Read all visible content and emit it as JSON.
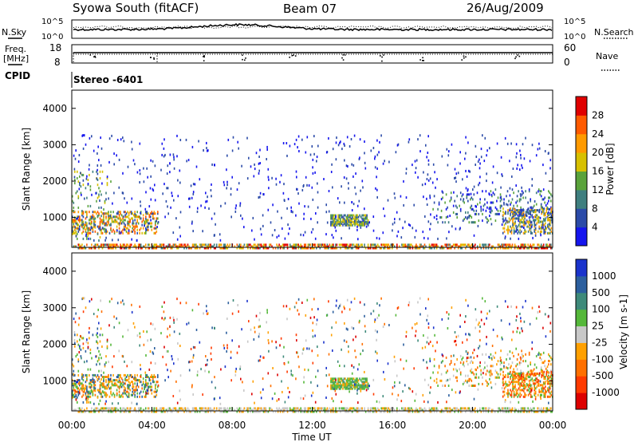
{
  "header": {
    "station": "Syowa South (fitACF)",
    "beam": "Beam 07",
    "date": "26/Aug/2009"
  },
  "noise_panel": {
    "left_label": "N.Sky",
    "right_label": "N.Search",
    "left_ticks": [
      "10^5",
      "10^0"
    ],
    "right_ticks": [
      "10^5",
      "10^0"
    ]
  },
  "freq_panel": {
    "left_label_1": "Freq.",
    "left_label_2": "[MHz]",
    "right_label": "Nave",
    "left_ticks": [
      "18",
      "8"
    ],
    "right_ticks": [
      "60",
      "0"
    ]
  },
  "cpid": {
    "label": "CPID",
    "value": "Stereo -6401"
  },
  "chart_data": [
    {
      "type": "heatmap",
      "panel": "power",
      "ylabel": "Slant Range [km]",
      "xlabel": "Time UT",
      "ylim": [
        180,
        4500
      ],
      "yticks": [
        "1000",
        "2000",
        "3000",
        "4000"
      ],
      "xticks": [
        "00:00",
        "04:00",
        "08:00",
        "12:00",
        "16:00",
        "20:00",
        "00:00"
      ],
      "colorbar": {
        "title": "Power [dB]",
        "ticks": [
          "4",
          "8",
          "12",
          "16",
          "20",
          "24",
          "28"
        ],
        "colors": [
          "#1515ee",
          "#2b4ba8",
          "#3f7f7f",
          "#5aa33b",
          "#d7c000",
          "#ff9a00",
          "#ff5a00",
          "#e00000"
        ]
      }
    },
    {
      "type": "heatmap",
      "panel": "velocity",
      "ylabel": "Slant Range [km]",
      "ylim": [
        180,
        4500
      ],
      "yticks": [
        "1000",
        "2000",
        "3000",
        "4000"
      ],
      "xticks": [
        "00:00",
        "04:00",
        "08:00",
        "12:00",
        "16:00",
        "20:00",
        "00:00"
      ],
      "colorbar": {
        "title": "Velocity [m s-1]",
        "ticks": [
          "1000",
          "500",
          "100",
          "25",
          "-25",
          "-100",
          "-500",
          "-1000"
        ],
        "colors": [
          "#1a33cc",
          "#2c5f9e",
          "#3e8a7a",
          "#55b83a",
          "#c8c8c8",
          "#ffa000",
          "#ff7000",
          "#ff3a00",
          "#dd0000"
        ]
      }
    }
  ]
}
